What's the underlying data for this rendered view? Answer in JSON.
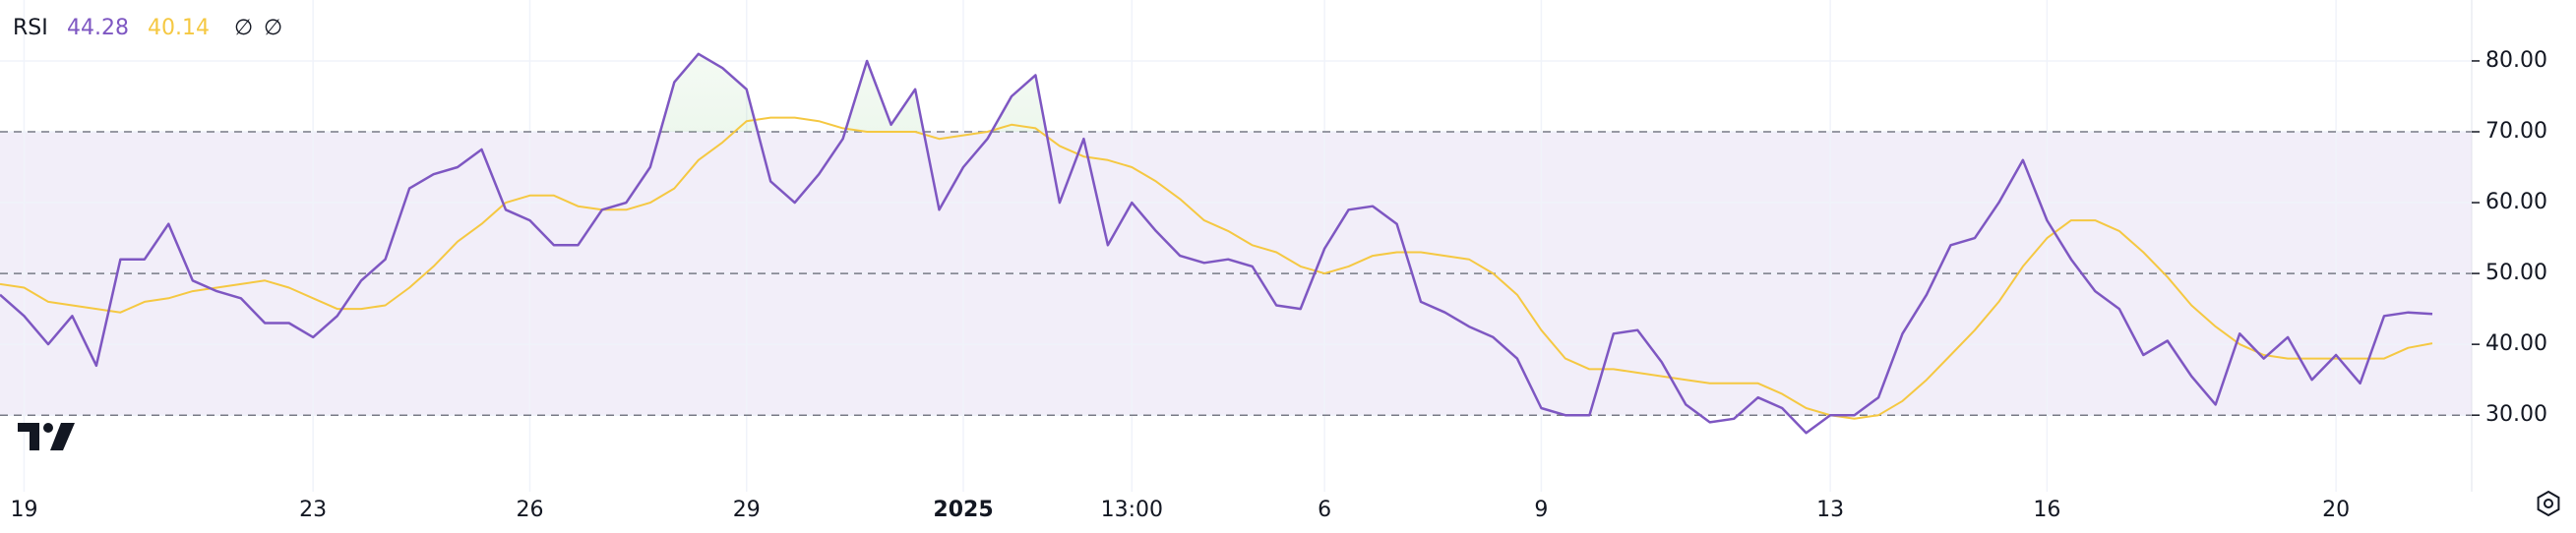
{
  "chart_data": {
    "type": "line",
    "title": "RSI",
    "indicator_labels": [
      "∅",
      "∅"
    ],
    "categories": [
      null,
      "19",
      null,
      null,
      null,
      null,
      null,
      null,
      null,
      null,
      null,
      null,
      null,
      "23",
      null,
      null,
      null,
      null,
      null,
      null,
      null,
      null,
      "26",
      null,
      null,
      null,
      null,
      null,
      null,
      null,
      null,
      "29",
      null,
      null,
      null,
      null,
      null,
      null,
      null,
      null,
      "2025",
      null,
      null,
      null,
      null,
      null,
      null,
      "13:00",
      null,
      null,
      null,
      null,
      null,
      null,
      null,
      "6",
      null,
      null,
      null,
      null,
      null,
      null,
      null,
      null,
      "9",
      null,
      null,
      null,
      null,
      null,
      null,
      null,
      null,
      null,
      null,
      null,
      "13",
      null,
      null,
      null,
      null,
      null,
      null,
      null,
      null,
      "16",
      null,
      null,
      null,
      null,
      null,
      null,
      null,
      null,
      null,
      null,
      null,
      "20",
      null,
      null,
      null,
      null
    ],
    "series": [
      {
        "color": "#7e57c2",
        "values": [
          47,
          44,
          40,
          44,
          37,
          52,
          52,
          57,
          49,
          47.5,
          46.5,
          43,
          43,
          41,
          44,
          49,
          52,
          62,
          64,
          65,
          67.5,
          59,
          57.5,
          54,
          54,
          59,
          60,
          65,
          77,
          81,
          79,
          76,
          63,
          60,
          64,
          69,
          80,
          71,
          76,
          59,
          65,
          69,
          75,
          78,
          60,
          69,
          54,
          60,
          56,
          52.5,
          51.5,
          52,
          51,
          45.5,
          45,
          53.5,
          59,
          59.5,
          57,
          46,
          44.5,
          42.5,
          41,
          38,
          31,
          30,
          30,
          41.5,
          42,
          37.5,
          31.5,
          29,
          29.5,
          32.5,
          31,
          27.5,
          30,
          30,
          32.5,
          41.5,
          47,
          54,
          55,
          60,
          66,
          57.5,
          52,
          47.5,
          45,
          38.5,
          40.5,
          35.5,
          31.5,
          41.5,
          38,
          41,
          35,
          38.5,
          34.5,
          44,
          44.5,
          44.28
        ]
      },
      {
        "color": "#f5c842",
        "values": [
          48.5,
          48,
          46,
          45.5,
          45,
          44.5,
          46,
          46.5,
          47.5,
          48,
          48.5,
          49,
          48,
          46.5,
          45,
          45,
          45.5,
          48,
          51,
          54.5,
          57,
          60,
          61,
          61,
          59.5,
          59,
          59,
          60,
          62,
          66,
          68.5,
          71.5,
          72,
          72,
          71.5,
          70.5,
          70,
          70,
          70,
          69,
          69.5,
          70,
          71,
          70.5,
          68,
          66.5,
          66,
          65,
          63,
          60.5,
          57.5,
          56,
          54,
          53,
          51,
          50,
          51,
          52.5,
          53,
          53,
          52.5,
          52,
          50,
          47,
          42,
          38,
          36.5,
          36.5,
          36,
          35.5,
          35,
          34.5,
          34.5,
          34.5,
          33,
          31,
          30,
          29.5,
          30,
          32,
          35,
          38.5,
          42,
          46,
          51,
          55,
          57.5,
          57.5,
          56,
          53,
          49.5,
          45.5,
          42.5,
          40,
          38.5,
          38,
          38,
          38,
          38,
          38,
          39.5,
          40.14
        ]
      }
    ],
    "ylim": [
      19.2,
      88.6
    ],
    "yticks": [
      {
        "value": 30,
        "label": "30.00"
      },
      {
        "value": 40,
        "label": "40.00"
      },
      {
        "value": 50,
        "label": "50.00"
      },
      {
        "value": 60,
        "label": "60.00"
      },
      {
        "value": 70,
        "label": "70.00"
      },
      {
        "value": 80,
        "label": "80.00"
      }
    ],
    "levels": [
      30,
      50,
      70
    ],
    "band": [
      30,
      70
    ],
    "overbought": 70,
    "grid": true
  }
}
